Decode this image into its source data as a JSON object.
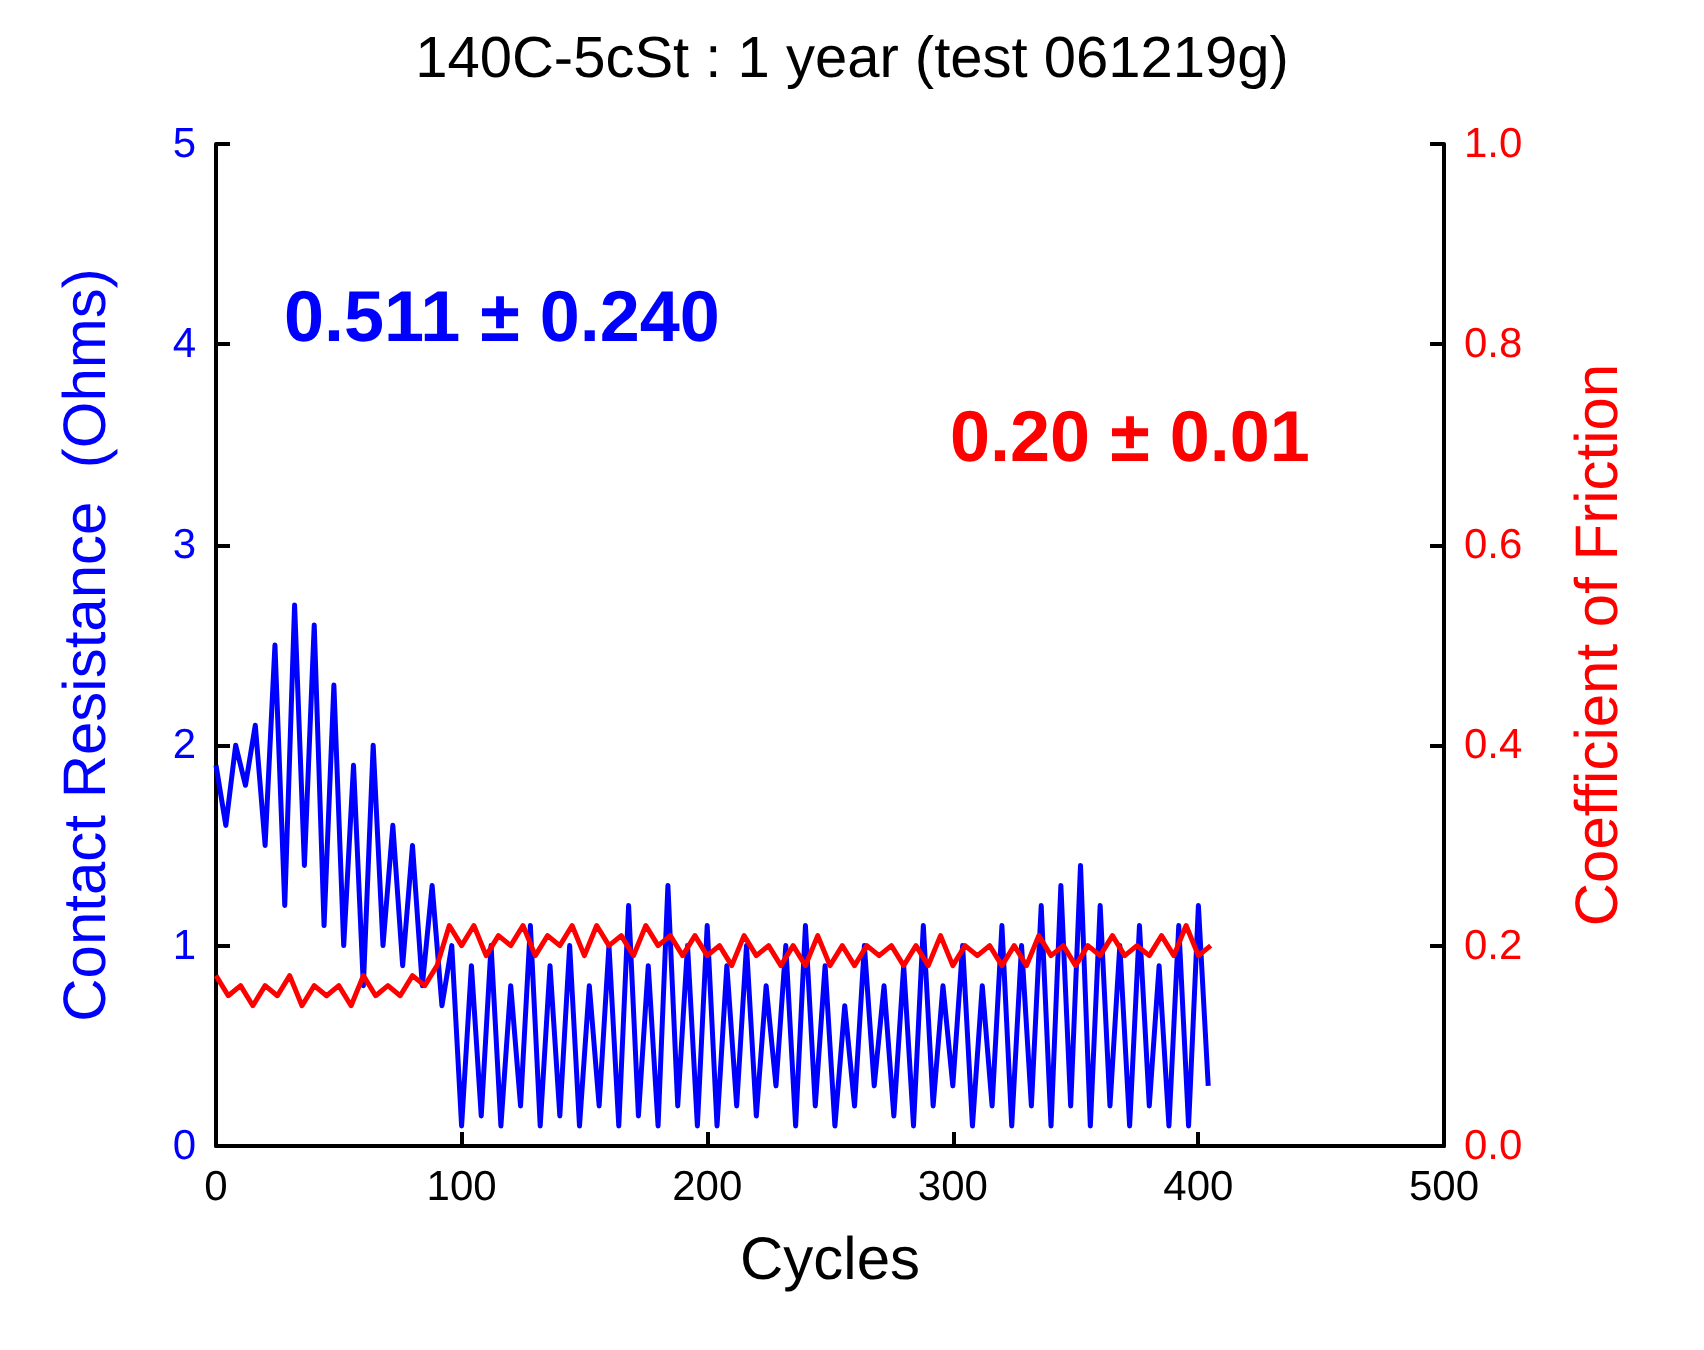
{
  "chart_data": {
    "type": "line",
    "title": "140C-5cSt : 1 year (test 061219g)",
    "xlabel": "Cycles",
    "ylabel": "Contact Resistance  (Ohms)",
    "y2label": "Coefficient of Friction",
    "annotations": [
      "0.511 ± 0.240",
      "0.20 ± 0.01"
    ],
    "xlim": [
      0,
      500
    ],
    "xticks": [
      0,
      100,
      200,
      300,
      400,
      500
    ],
    "ylim": [
      0,
      5
    ],
    "yticks": [
      0,
      1,
      2,
      3,
      4,
      5
    ],
    "y2lim": [
      0,
      1
    ],
    "y2ticks": [
      {
        "value": 0,
        "label": "0.0"
      },
      {
        "value": 0.2,
        "label": "0.2"
      },
      {
        "value": 0.4,
        "label": "0.4"
      },
      {
        "value": 0.6,
        "label": "0.6"
      },
      {
        "value": 0.8,
        "label": "0.8"
      },
      {
        "value": 1,
        "label": "1.0"
      }
    ],
    "grid": false,
    "marker": "none",
    "line_style": "solid",
    "series": [
      {
        "color": "#0000ff",
        "x": [
          0,
          4,
          8,
          12,
          16,
          20,
          24,
          28,
          32,
          36,
          40,
          44,
          48,
          52,
          56,
          60,
          64,
          68,
          72,
          76,
          80,
          84,
          88,
          92,
          96,
          100,
          104,
          108,
          112,
          116,
          120,
          124,
          128,
          132,
          136,
          140,
          144,
          148,
          152,
          156,
          160,
          164,
          168,
          172,
          176,
          180,
          184,
          188,
          192,
          196,
          200,
          204,
          208,
          212,
          216,
          220,
          224,
          228,
          232,
          236,
          240,
          244,
          248,
          252,
          256,
          260,
          264,
          268,
          272,
          276,
          280,
          284,
          288,
          292,
          296,
          300,
          304,
          308,
          312,
          316,
          320,
          324,
          328,
          332,
          336,
          340,
          344,
          348,
          352,
          356,
          360,
          364,
          368,
          372,
          376,
          380,
          384,
          388,
          392,
          396,
          400,
          404
        ],
        "values": [
          1.9,
          1.6,
          2.0,
          1.8,
          2.1,
          1.5,
          2.5,
          1.2,
          2.7,
          1.4,
          2.6,
          1.1,
          2.3,
          1.0,
          1.9,
          0.8,
          2.0,
          1.0,
          1.6,
          0.9,
          1.5,
          0.8,
          1.3,
          0.7,
          1.0,
          0.1,
          0.9,
          0.15,
          1.0,
          0.1,
          0.8,
          0.2,
          1.1,
          0.1,
          0.9,
          0.15,
          1.0,
          0.1,
          0.8,
          0.2,
          1.0,
          0.1,
          1.2,
          0.15,
          0.9,
          0.1,
          1.3,
          0.2,
          1.0,
          0.1,
          1.1,
          0.1,
          0.9,
          0.2,
          1.0,
          0.15,
          0.8,
          0.3,
          1.0,
          0.1,
          1.1,
          0.2,
          0.9,
          0.1,
          0.7,
          0.2,
          1.0,
          0.3,
          0.8,
          0.15,
          0.9,
          0.1,
          1.1,
          0.2,
          0.8,
          0.3,
          1.0,
          0.1,
          0.8,
          0.2,
          1.1,
          0.1,
          1.0,
          0.2,
          1.2,
          0.1,
          1.3,
          0.2,
          1.4,
          0.1,
          1.2,
          0.2,
          1.0,
          0.1,
          1.1,
          0.2,
          0.9,
          0.1,
          1.1,
          0.1,
          1.2,
          0.3
        ]
      },
      {
        "color": "#ff0000",
        "axis": "y2",
        "x": [
          0,
          5,
          10,
          15,
          20,
          25,
          30,
          35,
          40,
          45,
          50,
          55,
          60,
          65,
          70,
          75,
          80,
          85,
          90,
          95,
          100,
          105,
          110,
          115,
          120,
          125,
          130,
          135,
          140,
          145,
          150,
          155,
          160,
          165,
          170,
          175,
          180,
          185,
          190,
          195,
          200,
          205,
          210,
          215,
          220,
          225,
          230,
          235,
          240,
          245,
          250,
          255,
          260,
          265,
          270,
          275,
          280,
          285,
          290,
          295,
          300,
          305,
          310,
          315,
          320,
          325,
          330,
          335,
          340,
          345,
          350,
          355,
          360,
          365,
          370,
          375,
          380,
          385,
          390,
          395,
          400,
          405
        ],
        "values": [
          0.17,
          0.15,
          0.16,
          0.14,
          0.16,
          0.15,
          0.17,
          0.14,
          0.16,
          0.15,
          0.16,
          0.14,
          0.17,
          0.15,
          0.16,
          0.15,
          0.17,
          0.16,
          0.18,
          0.22,
          0.2,
          0.22,
          0.19,
          0.21,
          0.2,
          0.22,
          0.19,
          0.21,
          0.2,
          0.22,
          0.19,
          0.22,
          0.2,
          0.21,
          0.19,
          0.22,
          0.2,
          0.21,
          0.19,
          0.21,
          0.19,
          0.2,
          0.18,
          0.21,
          0.19,
          0.2,
          0.18,
          0.2,
          0.18,
          0.21,
          0.18,
          0.2,
          0.18,
          0.2,
          0.19,
          0.2,
          0.18,
          0.2,
          0.18,
          0.21,
          0.18,
          0.2,
          0.19,
          0.2,
          0.18,
          0.2,
          0.18,
          0.21,
          0.19,
          0.2,
          0.18,
          0.2,
          0.19,
          0.21,
          0.19,
          0.2,
          0.19,
          0.21,
          0.19,
          0.22,
          0.19,
          0.2
        ]
      }
    ]
  }
}
